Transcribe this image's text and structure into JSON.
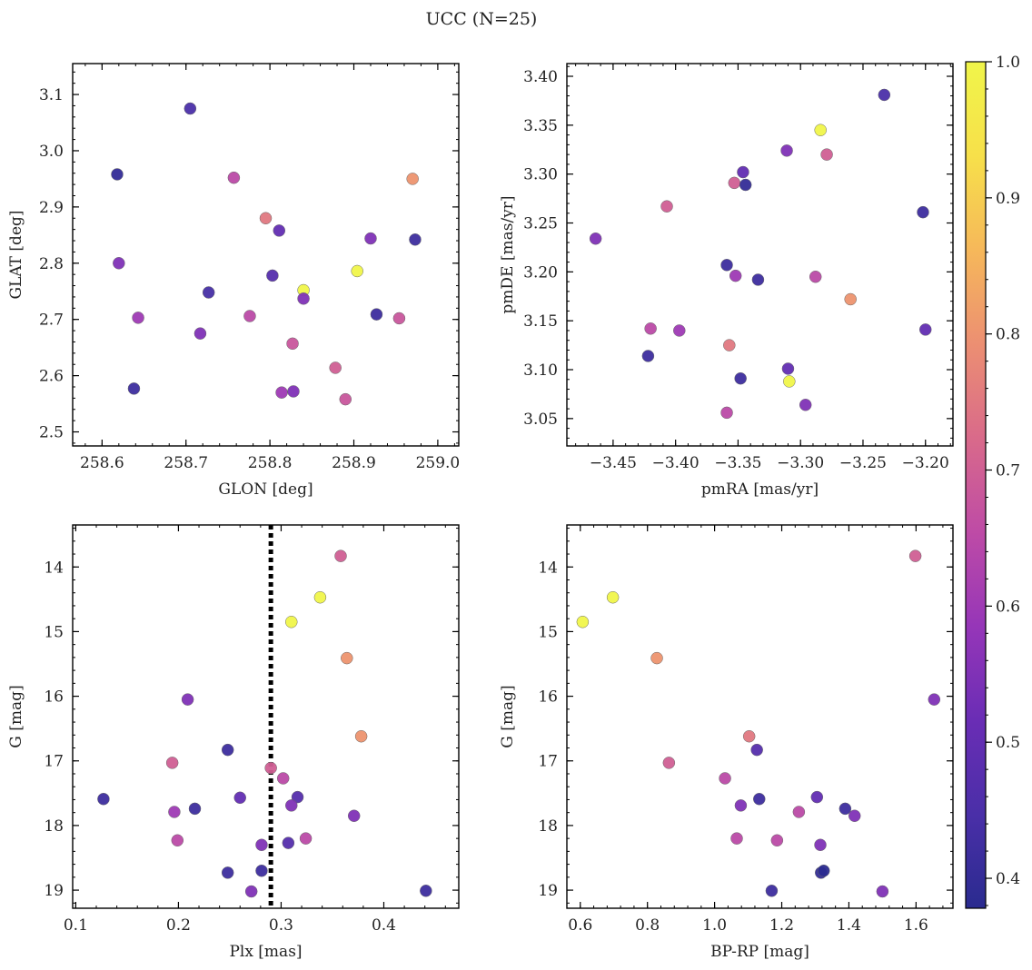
{
  "figure": {
    "title": "UCC (N=25)"
  },
  "colorbar": {
    "ticks": [
      "0.4",
      "0.5",
      "0.6",
      "0.7",
      "0.8",
      "0.9",
      "1.0"
    ],
    "tick_values": [
      0.4,
      0.5,
      0.6,
      0.7,
      0.8,
      0.9,
      1.0
    ],
    "range": [
      0.378,
      1.0
    ],
    "colormap": "plasma",
    "stops": [
      "#2a2b8f",
      "#4a2fa8",
      "#6a2db5",
      "#9636b8",
      "#be4ba6",
      "#d96a8a",
      "#ec8f72",
      "#f6b85a",
      "#f7e04a",
      "#f0f54a"
    ]
  },
  "chart_data": [
    {
      "type": "scatter",
      "name": "glon-glat",
      "xlabel": "GLON [deg]",
      "ylabel": "GLAT [deg]",
      "xlim": [
        258.565,
        259.025
      ],
      "ylim": [
        2.475,
        3.155
      ],
      "invert_y": false,
      "xticks": [
        258.6,
        258.7,
        258.8,
        258.9,
        259.0
      ],
      "xtick_labels": [
        "258.6",
        "258.7",
        "258.8",
        "258.9",
        "259.0"
      ],
      "yticks": [
        2.5,
        2.6,
        2.7,
        2.8,
        2.9,
        3.0,
        3.1
      ],
      "ytick_labels": [
        "2.5",
        "2.6",
        "2.7",
        "2.8",
        "2.9",
        "3.0",
        "3.1"
      ],
      "points": [
        {
          "x": 258.705,
          "y": 3.075,
          "c": 0.45
        },
        {
          "x": 258.618,
          "y": 2.958,
          "c": 0.4
        },
        {
          "x": 258.757,
          "y": 2.952,
          "c": 0.65
        },
        {
          "x": 258.97,
          "y": 2.95,
          "c": 0.8
        },
        {
          "x": 258.795,
          "y": 2.88,
          "c": 0.75
        },
        {
          "x": 258.811,
          "y": 2.858,
          "c": 0.5
        },
        {
          "x": 258.92,
          "y": 2.844,
          "c": 0.55
        },
        {
          "x": 258.973,
          "y": 2.842,
          "c": 0.42
        },
        {
          "x": 258.62,
          "y": 2.8,
          "c": 0.55
        },
        {
          "x": 258.904,
          "y": 2.786,
          "c": 1.0
        },
        {
          "x": 258.803,
          "y": 2.778,
          "c": 0.47
        },
        {
          "x": 258.84,
          "y": 2.752,
          "c": 1.0
        },
        {
          "x": 258.727,
          "y": 2.748,
          "c": 0.44
        },
        {
          "x": 258.84,
          "y": 2.737,
          "c": 0.55
        },
        {
          "x": 258.927,
          "y": 2.709,
          "c": 0.42
        },
        {
          "x": 258.643,
          "y": 2.703,
          "c": 0.6
        },
        {
          "x": 258.776,
          "y": 2.706,
          "c": 0.65
        },
        {
          "x": 258.954,
          "y": 2.702,
          "c": 0.68
        },
        {
          "x": 258.717,
          "y": 2.675,
          "c": 0.55
        },
        {
          "x": 258.827,
          "y": 2.657,
          "c": 0.68
        },
        {
          "x": 258.878,
          "y": 2.614,
          "c": 0.7
        },
        {
          "x": 258.638,
          "y": 2.577,
          "c": 0.42
        },
        {
          "x": 258.814,
          "y": 2.57,
          "c": 0.6
        },
        {
          "x": 258.828,
          "y": 2.572,
          "c": 0.55
        },
        {
          "x": 258.89,
          "y": 2.558,
          "c": 0.68
        }
      ]
    },
    {
      "type": "scatter",
      "name": "pm",
      "xlabel": "pmRA [mas/yr]",
      "ylabel": "pmDE [mas/yr]",
      "xlim": [
        -3.487,
        -3.178
      ],
      "ylim": [
        3.022,
        3.413
      ],
      "invert_y": false,
      "xticks": [
        -3.45,
        -3.4,
        -3.35,
        -3.3,
        -3.25,
        -3.2
      ],
      "xtick_labels": [
        "−3.45",
        "−3.40",
        "−3.35",
        "−3.30",
        "−3.25",
        "−3.20"
      ],
      "yticks": [
        3.05,
        3.1,
        3.15,
        3.2,
        3.25,
        3.3,
        3.35,
        3.4
      ],
      "ytick_labels": [
        "3.05",
        "3.10",
        "3.15",
        "3.20",
        "3.25",
        "3.30",
        "3.35",
        "3.40"
      ],
      "points": [
        {
          "x": -3.233,
          "y": 3.381,
          "c": 0.45
        },
        {
          "x": -3.284,
          "y": 3.345,
          "c": 1.0
        },
        {
          "x": -3.311,
          "y": 3.324,
          "c": 0.55
        },
        {
          "x": -3.279,
          "y": 3.32,
          "c": 0.7
        },
        {
          "x": -3.346,
          "y": 3.302,
          "c": 0.5
        },
        {
          "x": -3.353,
          "y": 3.291,
          "c": 0.7
        },
        {
          "x": -3.344,
          "y": 3.289,
          "c": 0.4
        },
        {
          "x": -3.407,
          "y": 3.267,
          "c": 0.7
        },
        {
          "x": -3.202,
          "y": 3.261,
          "c": 0.42
        },
        {
          "x": -3.464,
          "y": 3.234,
          "c": 0.55
        },
        {
          "x": -3.359,
          "y": 3.207,
          "c": 0.42
        },
        {
          "x": -3.352,
          "y": 3.196,
          "c": 0.6
        },
        {
          "x": -3.334,
          "y": 3.192,
          "c": 0.42
        },
        {
          "x": -3.288,
          "y": 3.195,
          "c": 0.65
        },
        {
          "x": -3.26,
          "y": 3.172,
          "c": 0.8
        },
        {
          "x": -3.42,
          "y": 3.142,
          "c": 0.65
        },
        {
          "x": -3.397,
          "y": 3.14,
          "c": 0.6
        },
        {
          "x": -3.2,
          "y": 3.141,
          "c": 0.5
        },
        {
          "x": -3.422,
          "y": 3.114,
          "c": 0.42
        },
        {
          "x": -3.357,
          "y": 3.125,
          "c": 0.75
        },
        {
          "x": -3.31,
          "y": 3.101,
          "c": 0.5
        },
        {
          "x": -3.348,
          "y": 3.091,
          "c": 0.42
        },
        {
          "x": -3.309,
          "y": 3.088,
          "c": 1.0
        },
        {
          "x": -3.296,
          "y": 3.064,
          "c": 0.55
        },
        {
          "x": -3.359,
          "y": 3.056,
          "c": 0.65
        }
      ]
    },
    {
      "type": "scatter",
      "name": "plx-g",
      "xlabel": "Plx [mas]",
      "ylabel": "G [mag]",
      "xlim": [
        0.097,
        0.473
      ],
      "ylim": [
        13.35,
        19.28
      ],
      "invert_y": true,
      "xticks": [
        0.1,
        0.2,
        0.3,
        0.4
      ],
      "xtick_labels": [
        "0.1",
        "0.2",
        "0.3",
        "0.4"
      ],
      "yticks": [
        14,
        15,
        16,
        17,
        18,
        19
      ],
      "ytick_labels": [
        "14",
        "15",
        "16",
        "17",
        "18",
        "19"
      ],
      "vline": {
        "x": 0.29,
        "style": "dotted",
        "color": "#000000"
      },
      "points": [
        {
          "x": 0.358,
          "y": 13.83,
          "c": 0.7
        },
        {
          "x": 0.338,
          "y": 14.47,
          "c": 1.0
        },
        {
          "x": 0.31,
          "y": 14.85,
          "c": 1.0
        },
        {
          "x": 0.364,
          "y": 15.41,
          "c": 0.8
        },
        {
          "x": 0.209,
          "y": 16.05,
          "c": 0.55
        },
        {
          "x": 0.378,
          "y": 16.62,
          "c": 0.8
        },
        {
          "x": 0.248,
          "y": 16.83,
          "c": 0.42
        },
        {
          "x": 0.194,
          "y": 17.03,
          "c": 0.7
        },
        {
          "x": 0.29,
          "y": 17.11,
          "c": 0.7
        },
        {
          "x": 0.302,
          "y": 17.27,
          "c": 0.65
        },
        {
          "x": 0.127,
          "y": 17.59,
          "c": 0.42
        },
        {
          "x": 0.26,
          "y": 17.57,
          "c": 0.5
        },
        {
          "x": 0.316,
          "y": 17.56,
          "c": 0.47
        },
        {
          "x": 0.31,
          "y": 17.69,
          "c": 0.55
        },
        {
          "x": 0.196,
          "y": 17.79,
          "c": 0.6
        },
        {
          "x": 0.216,
          "y": 17.74,
          "c": 0.42
        },
        {
          "x": 0.371,
          "y": 17.85,
          "c": 0.55
        },
        {
          "x": 0.199,
          "y": 18.23,
          "c": 0.65
        },
        {
          "x": 0.324,
          "y": 18.2,
          "c": 0.65
        },
        {
          "x": 0.307,
          "y": 18.27,
          "c": 0.47
        },
        {
          "x": 0.281,
          "y": 18.3,
          "c": 0.55
        },
        {
          "x": 0.248,
          "y": 18.73,
          "c": 0.42
        },
        {
          "x": 0.281,
          "y": 18.7,
          "c": 0.42
        },
        {
          "x": 0.271,
          "y": 19.02,
          "c": 0.55
        },
        {
          "x": 0.441,
          "y": 19.01,
          "c": 0.42
        }
      ]
    },
    {
      "type": "scatter",
      "name": "cmd",
      "xlabel": "BP-RP [mag]",
      "ylabel": "G [mag]",
      "xlim": [
        0.56,
        1.71
      ],
      "ylim": [
        13.35,
        19.28
      ],
      "invert_y": true,
      "xticks": [
        0.6,
        0.8,
        1.0,
        1.2,
        1.4,
        1.6
      ],
      "xtick_labels": [
        "0.6",
        "0.8",
        "1.0",
        "1.2",
        "1.4",
        "1.6"
      ],
      "yticks": [
        14,
        15,
        16,
        17,
        18,
        19
      ],
      "ytick_labels": [
        "14",
        "15",
        "16",
        "17",
        "18",
        "19"
      ],
      "points": [
        {
          "x": 1.598,
          "y": 13.83,
          "c": 0.7
        },
        {
          "x": 0.697,
          "y": 14.47,
          "c": 1.0
        },
        {
          "x": 0.607,
          "y": 14.85,
          "c": 1.0
        },
        {
          "x": 0.828,
          "y": 15.41,
          "c": 0.8
        },
        {
          "x": 1.654,
          "y": 16.05,
          "c": 0.55
        },
        {
          "x": 1.103,
          "y": 16.62,
          "c": 0.75
        },
        {
          "x": 1.126,
          "y": 16.83,
          "c": 0.47
        },
        {
          "x": 0.864,
          "y": 17.03,
          "c": 0.7
        },
        {
          "x": 1.031,
          "y": 17.27,
          "c": 0.65
        },
        {
          "x": 1.133,
          "y": 17.59,
          "c": 0.42
        },
        {
          "x": 1.305,
          "y": 17.56,
          "c": 0.5
        },
        {
          "x": 1.078,
          "y": 17.69,
          "c": 0.55
        },
        {
          "x": 1.251,
          "y": 17.79,
          "c": 0.65
        },
        {
          "x": 1.389,
          "y": 17.74,
          "c": 0.42
        },
        {
          "x": 1.417,
          "y": 17.85,
          "c": 0.55
        },
        {
          "x": 1.066,
          "y": 18.2,
          "c": 0.65
        },
        {
          "x": 1.186,
          "y": 18.23,
          "c": 0.65
        },
        {
          "x": 1.315,
          "y": 18.3,
          "c": 0.55
        },
        {
          "x": 1.317,
          "y": 18.73,
          "c": 0.4
        },
        {
          "x": 1.325,
          "y": 18.7,
          "c": 0.38
        },
        {
          "x": 1.17,
          "y": 19.01,
          "c": 0.42
        },
        {
          "x": 1.5,
          "y": 19.02,
          "c": 0.55
        }
      ]
    }
  ]
}
